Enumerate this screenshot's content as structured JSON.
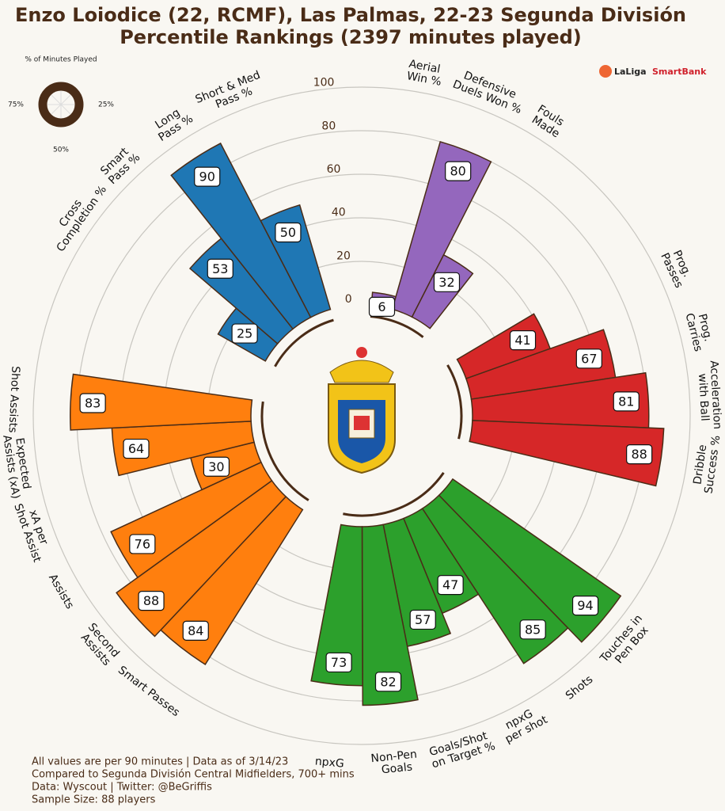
{
  "chart_data": {
    "type": "polar_bar",
    "title": "Enzo Loiodice (22, RCMF), Las Palmas, 22-23 Segunda División",
    "subtitle": "Percentile Rankings (2397 minutes played)",
    "rlim": [
      0,
      100
    ],
    "rticks": [
      0,
      20,
      40,
      60,
      80,
      100
    ],
    "grid": true,
    "edge_color": "#4a2c17",
    "groups": [
      {
        "color": "#9467bd",
        "categories": [
          "Aerial\nWin %",
          "Defensive\nDuels Won %",
          "Fouls\nMade"
        ],
        "values": [
          6,
          80,
          32
        ]
      },
      {
        "color": "#d62728",
        "categories": [
          "Prog.\nPasses",
          "Prog.\nCarries",
          "Acceleration\nwith Ball",
          "Dribble\nSuccess %"
        ],
        "values": [
          41,
          67,
          81,
          88
        ]
      },
      {
        "color": "#2ca02c",
        "categories": [
          "Touches in\nPen Box",
          "Shots",
          "npxG\nper shot",
          "Goals/Shot\non Target %",
          "Non-Pen\nGoals",
          "npxG"
        ],
        "values": [
          94,
          85,
          47,
          57,
          82,
          73
        ]
      },
      {
        "color": "#ff7f0e",
        "categories": [
          "Smart Passes",
          "Second\nAssists",
          "Assists",
          "xA per\nShot Assist",
          "Expected\nAssists (xA)",
          "Shot Assists"
        ],
        "values": [
          84,
          88,
          76,
          30,
          64,
          83
        ]
      },
      {
        "color": "#1f77b4",
        "categories": [
          "Cross\nCompletion %",
          "Smart\nPass %",
          "Long\nPass %",
          "Short & Med\nPass %"
        ],
        "values": [
          25,
          53,
          90,
          50
        ]
      }
    ],
    "minutes_chart": {
      "title": "% of Minutes Played",
      "ticks": [
        {
          "value": 75,
          "label": "75%"
        },
        {
          "value": 25,
          "label": "25%"
        },
        {
          "value": 50,
          "label": "50%"
        }
      ]
    },
    "logo": [
      "LaLiga",
      "SmartBank"
    ],
    "notes": [
      "All values are per 90 minutes | Data as of 3/14/23",
      "Compared to Segunda División Central Midfielders, 700+ mins",
      "Data: Wyscout | Twitter: @BeGriffis",
      "Sample Size: 88 players"
    ]
  }
}
